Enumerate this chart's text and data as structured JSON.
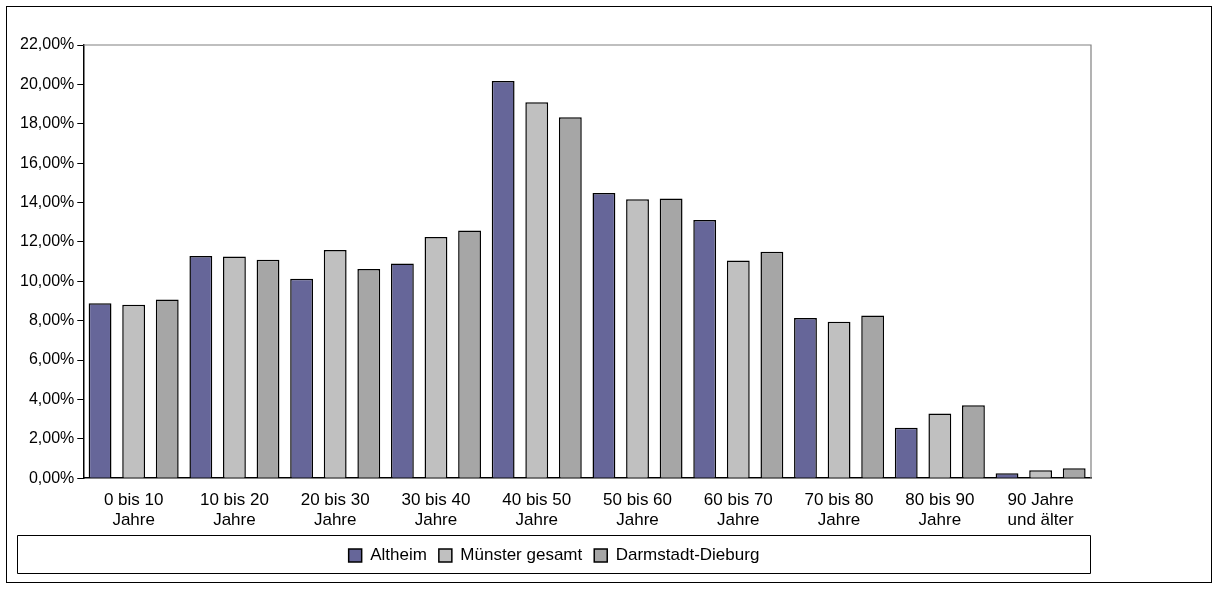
{
  "chart_data": {
    "type": "bar",
    "categories": [
      "0 bis 10 Jahre",
      "10 bis 20 Jahre",
      "20 bis 30 Jahre",
      "30 bis 40 Jahre",
      "40 bis 50 Jahre",
      "50 bis 60 Jahre",
      "60 bis 70 Jahre",
      "70 bis 80 Jahre",
      "80 bis 90 Jahre",
      "90 Jahre und älter"
    ],
    "series": [
      {
        "name": "Altheim",
        "color": "#666699",
        "values": [
          8.88,
          11.28,
          10.13,
          10.9,
          20.17,
          14.49,
          13.11,
          8.13,
          2.56,
          0.25
        ]
      },
      {
        "name": "Münster gesamt",
        "color": "#c0c0c0",
        "values": [
          8.81,
          11.26,
          11.59,
          12.25,
          19.09,
          14.17,
          11.06,
          7.94,
          3.28,
          0.4
        ]
      },
      {
        "name": "Darmstadt-Dieburg",
        "color": "#a6a6a6",
        "values": [
          9.07,
          11.1,
          10.62,
          12.58,
          18.33,
          14.2,
          11.5,
          8.26,
          3.71,
          0.5
        ]
      }
    ],
    "ylim": [
      0,
      22
    ],
    "yticks": [
      {
        "value": 0,
        "label": "0,00%"
      },
      {
        "value": 2,
        "label": "2,00%"
      },
      {
        "value": 4,
        "label": "4,00%"
      },
      {
        "value": 6,
        "label": "6,00%"
      },
      {
        "value": 8,
        "label": "8,00%"
      },
      {
        "value": 10,
        "label": "10,00%"
      },
      {
        "value": 12,
        "label": "12,00%"
      },
      {
        "value": 14,
        "label": "14,00%"
      },
      {
        "value": 16,
        "label": "16,00%"
      },
      {
        "value": 18,
        "label": "18,00%"
      },
      {
        "value": 20,
        "label": "20,00%"
      },
      {
        "value": 22,
        "label": "22,00%"
      }
    ],
    "grid": false,
    "legend": "bottom"
  }
}
